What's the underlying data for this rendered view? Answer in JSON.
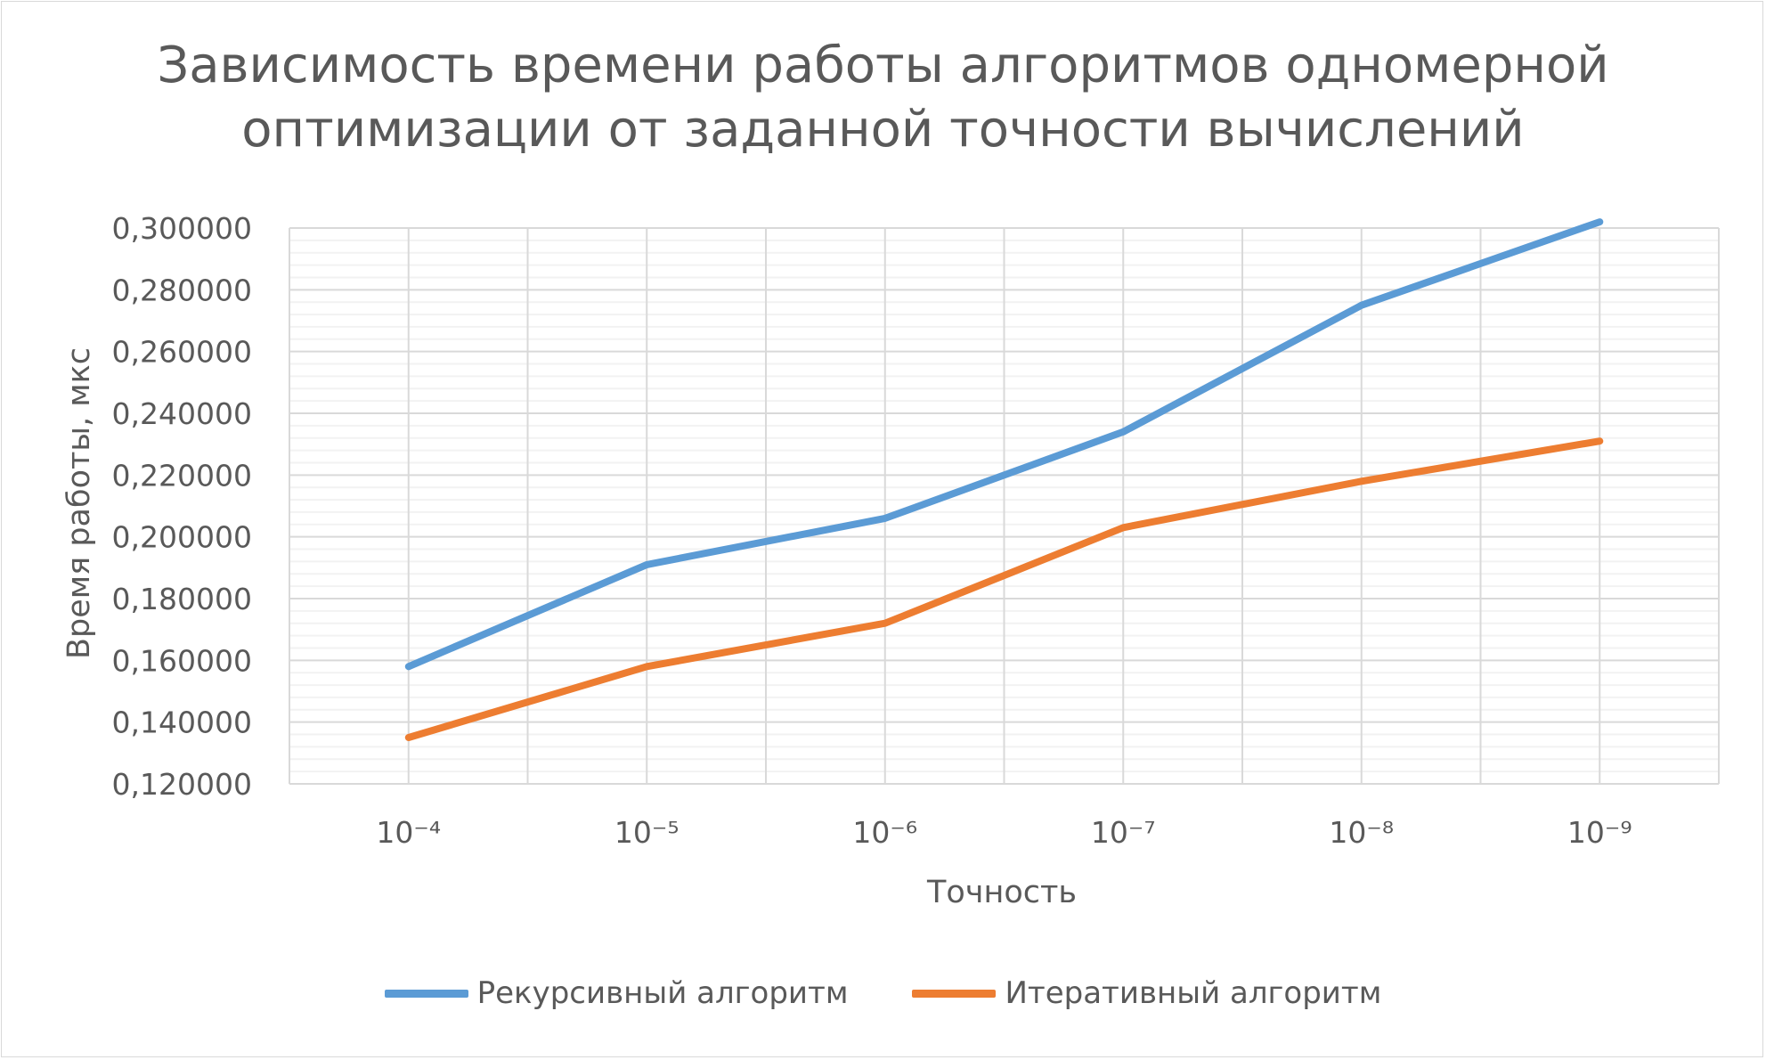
{
  "chart_data": {
    "type": "line",
    "title_lines": [
      "Зависимость времени работы алгоритмов одномерной",
      "оптимизации от заданной точности вычислений"
    ],
    "xlabel": "Точность",
    "ylabel": "Время работы, мкс",
    "categories": [
      "10⁻⁴",
      "10⁻⁵",
      "10⁻⁶",
      "10⁻⁷",
      "10⁻⁸",
      "10⁻⁹"
    ],
    "ylim": [
      0.12,
      0.3
    ],
    "yticks": [
      "0,120000",
      "0,140000",
      "0,160000",
      "0,180000",
      "0,200000",
      "0,220000",
      "0,240000",
      "0,260000",
      "0,280000",
      "0,300000"
    ],
    "grid": true,
    "legend_position": "bottom",
    "series": [
      {
        "name": "Рекурсивный алгоритм",
        "color": "#5b9bd5",
        "values": [
          0.158,
          0.191,
          0.206,
          0.234,
          0.275,
          0.302
        ]
      },
      {
        "name": "Итеративный алгоритм",
        "color": "#ed7d31",
        "values": [
          0.135,
          0.158,
          0.172,
          0.203,
          0.218,
          0.231
        ]
      }
    ]
  }
}
